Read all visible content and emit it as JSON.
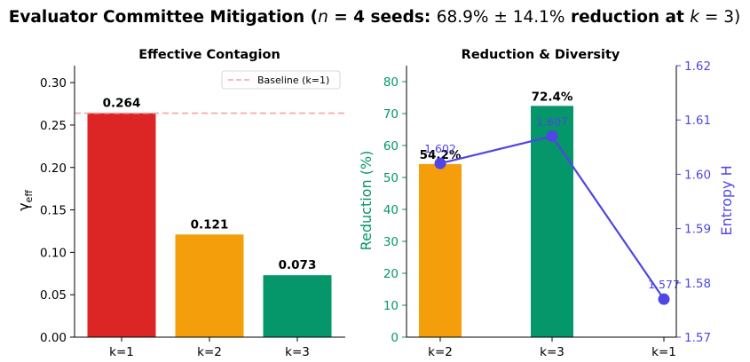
{
  "figure": {
    "title": "Evaluator Committee Mitigation (n = 4 seeds: 68.9% ± 14.1% reduction at k = 3)"
  },
  "colors": {
    "red": "#dc2626",
    "orange": "#f59e0b",
    "green": "#059669",
    "purple": "#4f46e5",
    "baseline": "#f4a3a3"
  },
  "chart_data": [
    {
      "type": "bar",
      "title": "Effective Contagion",
      "ylabel": "γ_eff",
      "categories": [
        "k=1",
        "k=2",
        "k=3"
      ],
      "values": [
        0.264,
        0.121,
        0.073
      ],
      "value_labels": [
        "0.264",
        "0.121",
        "0.073"
      ],
      "bar_colors": [
        "#dc2626",
        "#f59e0b",
        "#059669"
      ],
      "ylim": [
        0,
        0.32
      ],
      "yticks": [
        "0.00",
        "0.05",
        "0.10",
        "0.15",
        "0.20",
        "0.25",
        "0.30"
      ],
      "ytick_values": [
        0,
        0.05,
        0.1,
        0.15,
        0.2,
        0.25,
        0.3
      ],
      "baseline": {
        "label": "Baseline (k=1)",
        "value": 0.264,
        "style": "dashed"
      },
      "legend": "top-right",
      "grid": false
    },
    {
      "type": "bar+line",
      "title": "Reduction & Diversity",
      "categories": [
        "k=2",
        "k=3",
        "k=1"
      ],
      "bar_series": {
        "ylabel": "Reduction (%)",
        "values": [
          54.2,
          72.4
        ],
        "value_labels": [
          "54.2%",
          "72.4%"
        ],
        "bar_colors": [
          "#f59e0b",
          "#059669"
        ],
        "ylim": [
          0,
          85
        ],
        "yticks": [
          "0",
          "10",
          "20",
          "30",
          "40",
          "50",
          "60",
          "70",
          "80"
        ],
        "ytick_values": [
          0,
          10,
          20,
          30,
          40,
          50,
          60,
          70,
          80
        ]
      },
      "line_series": {
        "ylabel": "Entropy H",
        "values": [
          1.602,
          1.607,
          1.577
        ],
        "value_labels": [
          "1.602",
          "1.607",
          "1.577"
        ],
        "color": "#4f46e5",
        "ylim": [
          1.57,
          1.62
        ],
        "yticks": [
          "1.57",
          "1.58",
          "1.59",
          "1.60",
          "1.61",
          "1.62"
        ],
        "ytick_values": [
          1.57,
          1.58,
          1.59,
          1.6,
          1.61,
          1.62
        ]
      },
      "grid": false
    }
  ]
}
